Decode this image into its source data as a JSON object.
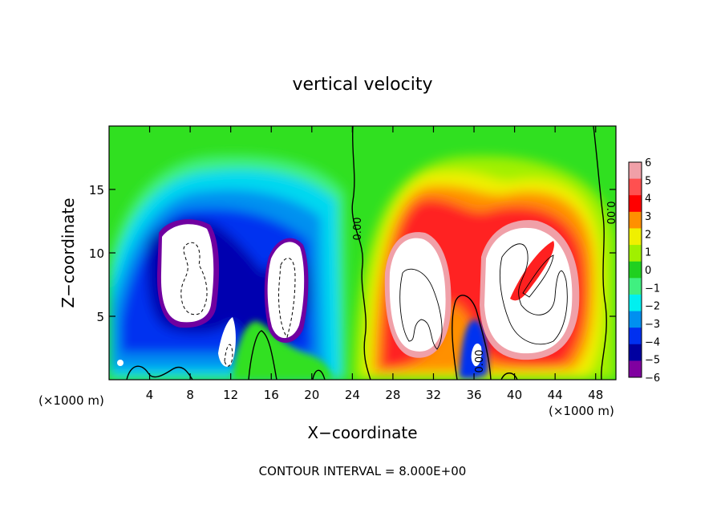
{
  "chart_data": {
    "type": "heatmap",
    "title": "vertical velocity",
    "xlabel": "X−coordinate",
    "ylabel": "Z−coordinate",
    "x_unit_left": "(×1000 m)",
    "x_unit_right": "(×1000 m)",
    "xlim": [
      0,
      50
    ],
    "ylim": [
      0,
      20
    ],
    "x_ticks": [
      4,
      8,
      12,
      16,
      20,
      24,
      28,
      32,
      36,
      40,
      44,
      48
    ],
    "x_tick_labels": [
      "4",
      "8",
      "12",
      "16",
      "20",
      "24",
      "28",
      "32",
      "36",
      "40",
      "44",
      "48"
    ],
    "y_ticks": [
      5,
      10,
      15
    ],
    "y_tick_labels": [
      "5",
      "10",
      "15"
    ],
    "colorbar_ticks": [
      6,
      5,
      4,
      3,
      2,
      1,
      0,
      -1,
      -2,
      -3,
      -4,
      -5,
      -6
    ],
    "colorbar_labels": [
      "6",
      "5",
      "4",
      "3",
      "2",
      "1",
      "0",
      "−1",
      "−2",
      "−3",
      "−4",
      "−5",
      "−6"
    ],
    "colorbar_colors": [
      "#f0a0a8",
      "#ff5050",
      "#ff0000",
      "#ff9000",
      "#f0f000",
      "#a0f000",
      "#20d020",
      "#40f080",
      "#00f0f0",
      "#0090f0",
      "#0030f0",
      "#0000a0",
      "#8000a0"
    ],
    "contour_labels": [
      "0.00",
      "0.00",
      "0.00"
    ],
    "contour_interval_text": "CONTOUR INTERVAL = 8.000E+00",
    "features": [
      {
        "x": 8,
        "z": 8,
        "w": -9
      },
      {
        "x": 17,
        "z": 8,
        "w": -9
      },
      {
        "x": 11,
        "z": 3,
        "w": -6
      },
      {
        "x": 30,
        "z": 8,
        "w": 9
      },
      {
        "x": 40,
        "z": 9,
        "w": 9
      },
      {
        "x": 36,
        "z": 2,
        "w": -6
      }
    ]
  }
}
